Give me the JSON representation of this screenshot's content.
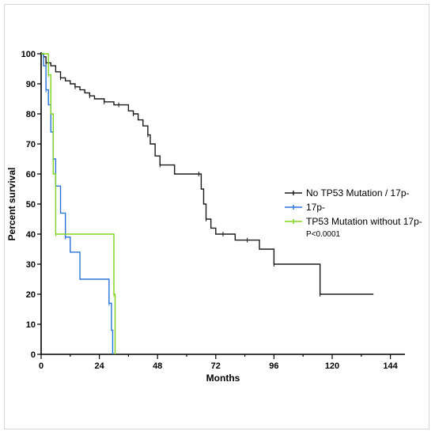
{
  "chart_data": {
    "type": "line",
    "xlabel": "Months",
    "ylabel": "Percent survival",
    "xlim": [
      0,
      150
    ],
    "ylim": [
      0,
      100
    ],
    "x_ticks": [
      0,
      24,
      48,
      72,
      96,
      120,
      144
    ],
    "y_ticks": [
      0,
      10,
      20,
      30,
      40,
      50,
      60,
      70,
      80,
      90,
      100
    ],
    "x_tick_labels": [
      "0",
      "24",
      "48",
      "72",
      "96",
      "120",
      "144"
    ],
    "y_tick_labels": [
      "0",
      "10",
      "20",
      "30",
      "40",
      "50",
      "60",
      "70",
      "80",
      "90",
      "100"
    ],
    "grid": false,
    "legend_position": "right",
    "annotation": "P<0.0001",
    "series": [
      {
        "name": "No TP53 Mutation / 17p-",
        "color": "#1a1a1a",
        "x": [
          0,
          1,
          2,
          4,
          6,
          8,
          10,
          12,
          14,
          16,
          18,
          20,
          22,
          24,
          26,
          28,
          30,
          32,
          34,
          36,
          38,
          40,
          42,
          44,
          45,
          47,
          49,
          55,
          63,
          65,
          66,
          67,
          68,
          70,
          72,
          75,
          77,
          80,
          85,
          90,
          95,
          96,
          110,
          114,
          115,
          137
        ],
        "y": [
          100,
          99,
          97,
          96,
          94,
          92,
          91,
          90,
          89,
          88,
          87,
          86,
          85,
          85,
          84,
          84,
          83,
          83,
          83,
          81,
          80,
          78,
          76,
          73,
          70,
          66,
          63,
          60,
          60,
          60,
          55,
          50,
          45,
          42,
          40,
          40,
          40,
          38,
          38,
          35,
          35,
          30,
          30,
          30,
          20,
          20
        ]
      },
      {
        "name": "17p-",
        "color": "#2a72d9",
        "x": [
          0,
          1,
          2,
          3,
          4,
          5,
          6,
          8,
          10,
          12,
          16,
          28,
          29,
          29.5
        ],
        "y": [
          100,
          96,
          88,
          83,
          74,
          65,
          56,
          47,
          39,
          34,
          25,
          17,
          8,
          0
        ]
      },
      {
        "name": "TP53 Mutation without 17p-",
        "color": "#7ed321",
        "x": [
          0,
          2,
          3,
          4,
          5,
          6,
          28,
          29,
          30,
          30.5
        ],
        "y": [
          100,
          100,
          93,
          80,
          60,
          40,
          40,
          40,
          20,
          0
        ]
      }
    ]
  }
}
